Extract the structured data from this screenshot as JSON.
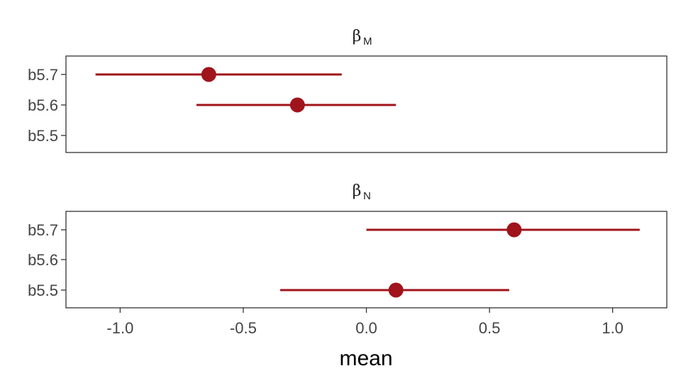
{
  "chart_data": {
    "type": "forest",
    "xlabel": "mean",
    "xlim": [
      -1.22,
      1.22
    ],
    "x_ticks": [
      -1.0,
      -0.5,
      0.0,
      0.5,
      1.0
    ],
    "x_tick_labels": [
      "-1.0",
      "-0.5",
      "0.0",
      "0.5",
      "1.0"
    ],
    "grid": false,
    "colors": {
      "point": "#a0141b",
      "interval": "#a0141b"
    },
    "panels": [
      {
        "title_symbol": "β",
        "title_sub": "M",
        "categories": [
          "b5.7",
          "b5.6",
          "b5.5"
        ],
        "estimates": [
          {
            "model": "b5.7",
            "mean": -0.64,
            "lower": -1.1,
            "upper": -0.1
          },
          {
            "model": "b5.6",
            "mean": -0.28,
            "lower": -0.69,
            "upper": 0.12
          }
        ]
      },
      {
        "title_symbol": "β",
        "title_sub": "N",
        "categories": [
          "b5.7",
          "b5.6",
          "b5.5"
        ],
        "estimates": [
          {
            "model": "b5.7",
            "mean": 0.6,
            "lower": 0.0,
            "upper": 1.11
          },
          {
            "model": "b5.5",
            "mean": 0.12,
            "lower": -0.35,
            "upper": 0.58
          }
        ]
      }
    ]
  }
}
